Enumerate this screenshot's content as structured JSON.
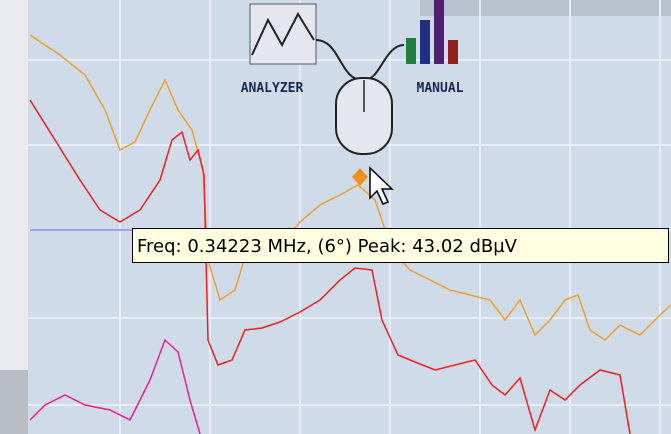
{
  "icons": [
    {
      "label": "ANALYZER"
    },
    {
      "label": "MANUAL"
    }
  ],
  "tooltip": {
    "text": "Freq: 0.34223 MHz, (6°) Peak: 43.02 dBµV"
  }
}
